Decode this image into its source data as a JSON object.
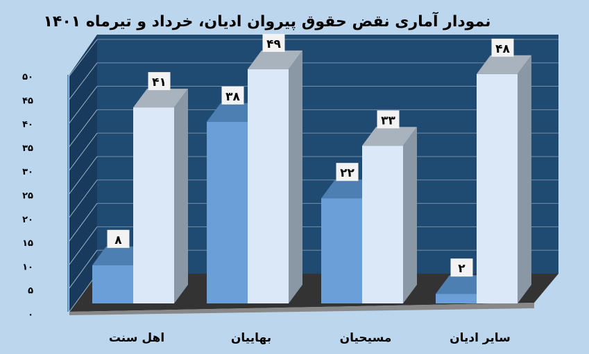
{
  "chart_data": {
    "type": "bar",
    "title": "نمودار آماری نقض حقوق پیروان ادیان، خرداد و تیرماه ۱۴۰۱",
    "categories": [
      "اهل سنت",
      "بهاییان",
      "مسیحیان",
      "سایر ادیان"
    ],
    "series": [
      {
        "values": [
          8,
          38,
          22,
          2
        ],
        "data_labels": [
          "۸",
          "۳۸",
          "۲۲",
          "۲"
        ],
        "color": "#6a9fd8"
      },
      {
        "values": [
          41,
          49,
          33,
          48
        ],
        "data_labels": [
          "۴۱",
          "۴۹",
          "۳۳",
          "۴۸"
        ],
        "color": "#dbe8f7"
      }
    ],
    "ylim": [
      0,
      50
    ],
    "yticks": [
      0,
      5,
      10,
      15,
      20,
      25,
      30,
      35,
      40,
      45,
      50
    ],
    "ytick_labels": [
      "۰",
      "۵",
      "۱۰",
      "۱۵",
      "۲۰",
      "۲۵",
      "۳۰",
      "۳۵",
      "۴۰",
      "۴۵",
      "۵۰"
    ],
    "grid": true,
    "style": "3d-column",
    "colors": {
      "background": "#bcd6ee",
      "wall": "#1f4a72",
      "floor": "#3a3a3a"
    }
  }
}
